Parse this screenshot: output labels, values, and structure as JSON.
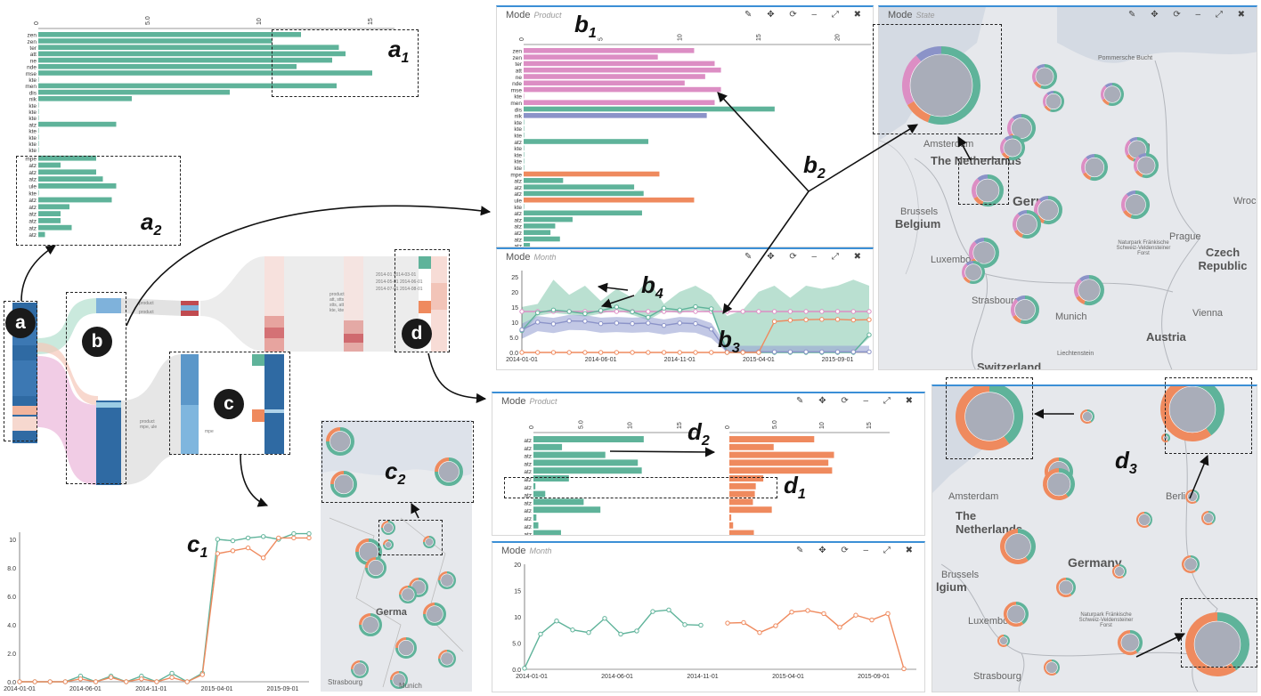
{
  "labels": {
    "a": "a",
    "b": "b",
    "c": "c",
    "d": "d",
    "a1": "a",
    "a1s": "1",
    "a2": "a",
    "a2s": "2",
    "b1": "b",
    "b1s": "1",
    "b2": "b",
    "b2s": "2",
    "b3": "b",
    "b3s": "3",
    "b4": "b",
    "b4s": "4",
    "c1": "c",
    "c1s": "1",
    "c2": "c",
    "c2s": "2",
    "d1": "d",
    "d1s": "1",
    "d2": "d",
    "d2s": "2",
    "d3": "d",
    "d3s": "3"
  },
  "panels": {
    "b1": {
      "mode": "Mode",
      "sub": "Product"
    },
    "b_state": {
      "mode": "Mode",
      "sub": "State"
    },
    "b3": {
      "mode": "Mode",
      "sub": "Month"
    },
    "d_product": {
      "mode": "Mode",
      "sub": "Product"
    },
    "d_month": {
      "mode": "Mode",
      "sub": "Month"
    }
  },
  "map_labels": {
    "germany": "Germany",
    "germ": "Germa",
    "netherlands": "The Netherlands",
    "belgium": "Belgium",
    "brussels": "Brussels",
    "luxembourg": "Luxembourg",
    "strasbourg": "Strasbourg",
    "prague": "Prague",
    "czech": "Czech Republic",
    "munich": "Munich",
    "vienna": "Vienna",
    "austria": "Austria",
    "switzerland": "Switzerland",
    "amsterdam": "Amsterdam",
    "berlin": "Berlin",
    "wroclaw": "Wrocla",
    "liechtenstein": "Liechtenstein",
    "naturpark": "Naturpark Fränkische Schweiz-Veldensteiner Forst",
    "pommersche": "Pommersche Bucht",
    "lgium": "lgium",
    "rlin": "rlin"
  },
  "sankey_text": {
    "product1": "product",
    "product2": "product",
    "product3": "product",
    "product4": "product",
    "mpe": "mpe",
    "att_stts": "att, stts",
    "stts_att": "stts, att",
    "kte_kte": "kte, kte",
    "mpe_ule": "mpe, ule",
    "dates1": "2014-01 2014-03-01",
    "dates2": "2014-05-01 2014-06-01",
    "dates3": "2014-07-01 2014-08-01"
  },
  "colors": {
    "green": "#5fb39a",
    "pink": "#dc8ec4",
    "orange": "#ef8a5e",
    "blue": "#4a87be",
    "purple": "#8b93c8",
    "ring": "#a9adb9"
  },
  "chart_data": [
    {
      "type": "bar",
      "id": "a",
      "xticks": [
        "0",
        "5.0",
        "10",
        "15"
      ],
      "xlim": [
        0,
        16
      ],
      "categories": [
        "zen",
        "zen",
        "ter",
        "att",
        "ne",
        "nde",
        "mse",
        "kte",
        "men",
        "dis",
        "nik",
        "kte",
        "kte",
        "kte",
        "atz",
        "kte",
        "kte",
        "kte",
        "kte"
      ],
      "values": [
        11.8,
        10.5,
        13.5,
        13.8,
        13.2,
        11.6,
        15.0,
        0.0,
        13.4,
        8.6,
        4.2,
        0,
        0,
        0,
        3.5,
        0,
        0,
        0,
        0
      ],
      "group2": {
        "categories": [
          "mpe",
          "atz",
          "atz",
          "atz",
          "ule",
          "kte",
          "atz",
          "atz",
          "atz",
          "atz",
          "atz",
          "atz"
        ],
        "values": [
          2.6,
          1.0,
          2.6,
          2.9,
          3.5,
          0.0,
          3.3,
          1.4,
          1.0,
          1.0,
          1.5,
          0.3
        ]
      }
    },
    {
      "type": "bar",
      "id": "b1",
      "xticks": [
        "0",
        "5",
        "10",
        "15",
        "20"
      ],
      "xlim": [
        0,
        22
      ],
      "categories": [
        "zen",
        "zen",
        "ter",
        "att",
        "ne",
        "nde",
        "mse",
        "kte",
        "men",
        "dis",
        "nik",
        "kte",
        "kte",
        "kte",
        "atz",
        "kte",
        "kte",
        "kte",
        "kte",
        "mpe",
        "atz",
        "atz",
        "atz",
        "ule",
        "kte",
        "atz",
        "atz",
        "atz",
        "atz",
        "atz",
        "atz"
      ],
      "values": [
        10.8,
        8.5,
        12.1,
        12.5,
        11.5,
        10.2,
        12.5,
        0.0,
        12.1,
        15.9,
        11.6,
        0,
        0,
        0,
        7.9,
        0,
        0,
        0,
        0,
        8.6,
        2.5,
        7.0,
        7.6,
        10.8,
        0,
        7.5,
        3.1,
        2.0,
        1.7,
        2.3,
        0.4
      ],
      "colors": [
        "pink",
        "pink",
        "pink",
        "pink",
        "pink",
        "pink",
        "pink",
        "pink",
        "pink",
        "green",
        "purple",
        "green",
        "green",
        "green",
        "green",
        "green",
        "green",
        "green",
        "green",
        "orange",
        "green",
        "green",
        "green",
        "orange",
        "green",
        "green",
        "green",
        "green",
        "green",
        "green",
        "green"
      ]
    },
    {
      "type": "line",
      "id": "b3",
      "xticks": [
        "2014-01-01",
        "2014-06-01",
        "2014-11-01",
        "2015-04-01",
        "2015-09-01"
      ],
      "yticks": [
        "0.0",
        "5.0",
        "10",
        "15",
        "20",
        "25"
      ],
      "ylim": [
        0,
        27
      ],
      "series": [
        {
          "color": "pink",
          "values": [
            13.5,
            13.5,
            13.5,
            13.5,
            13.5,
            13.5,
            13.5,
            13.5,
            13.5,
            13.5,
            13.5,
            13.5,
            13.5,
            13.5,
            13.5,
            13.5,
            13.5,
            13.5,
            13.5,
            13.5,
            13.5,
            13.5,
            13.5
          ]
        },
        {
          "color": "green",
          "values": [
            7.2,
            13.1,
            14.0,
            13.5,
            12.8,
            13.8,
            15.0,
            13.4,
            11.6,
            14.6,
            14.0,
            15.1,
            14.4,
            0,
            0,
            0,
            0,
            0,
            0,
            0,
            0,
            0,
            5.8
          ]
        },
        {
          "color": "purple",
          "values": [
            7.5,
            10.0,
            9.4,
            10.4,
            10.3,
            9.5,
            9.7,
            9.5,
            9.7,
            8.9,
            9.7,
            9.5,
            7.7,
            0.2,
            0.2,
            0.2,
            0.2,
            0.2,
            0.2,
            0.2,
            0.2,
            0.2,
            0.2
          ]
        },
        {
          "color": "orange",
          "values": [
            0,
            0,
            0,
            0,
            0,
            0,
            0,
            0,
            0,
            0,
            0,
            0,
            0,
            0,
            0,
            0,
            10.2,
            10.6,
            10.8,
            10.9,
            10.9,
            10.7,
            10.8
          ]
        }
      ],
      "band_green_upper": [
        15,
        16,
        24,
        19,
        22,
        17,
        21,
        18,
        24,
        16,
        20,
        22,
        19,
        12,
        14,
        20,
        22,
        18,
        22,
        21,
        22,
        24,
        22
      ]
    },
    {
      "type": "bar",
      "id": "d1",
      "xticks": [
        "0",
        "5.0",
        "10",
        "15"
      ],
      "xlim": [
        0,
        17
      ],
      "categories": [
        "atz",
        "atz",
        "atz",
        "atz",
        "atz",
        "atz",
        "atz",
        "atz",
        "atz",
        "atz",
        "atz",
        "atz",
        "atz"
      ],
      "green": [
        11.2,
        2.9,
        7.3,
        10.6,
        11.0,
        3.6,
        0.2,
        1.2,
        5.1,
        6.8,
        0.3,
        0.5,
        2.8
      ],
      "orange": [
        9.0,
        4.7,
        11.1,
        10.5,
        10.9,
        3.6,
        2.8,
        2.7,
        2.5,
        4.5,
        0.2,
        0.4,
        2.6
      ]
    },
    {
      "type": "line",
      "id": "d_month",
      "xticks": [
        "2014-01-01",
        "2014-06-01",
        "2014-11-01",
        "2015-04-01",
        "2015-09-01"
      ],
      "yticks": [
        "0.0",
        "5.0",
        "10",
        "15",
        "20"
      ],
      "ylim": [
        0,
        20
      ],
      "series": [
        {
          "color": "green",
          "values": [
            0.2,
            6.7,
            9.2,
            7.5,
            7.0,
            9.7,
            6.7,
            7.3,
            11.0,
            11.3,
            8.5,
            8.4
          ]
        },
        {
          "color": "orange",
          "values": [
            8.8,
            8.9,
            7.0,
            8.3,
            10.9,
            11.2,
            10.6,
            8.0,
            10.3,
            9.4,
            10.6,
            0.1
          ]
        }
      ]
    },
    {
      "type": "line",
      "id": "c1",
      "xticks": [
        "2014-01-01",
        "2014-06-01",
        "2014-11-01",
        "2015-04-01",
        "2015-09-01"
      ],
      "yticks": [
        "0.0",
        "2.0",
        "4.0",
        "6.0",
        "8.0",
        "10"
      ],
      "ylim": [
        0,
        10.5
      ],
      "series": [
        {
          "color": "green",
          "values": [
            0,
            0,
            0,
            0,
            0.4,
            0,
            0.4,
            0,
            0.4,
            0,
            0.6,
            0,
            0.6,
            10.0,
            9.9,
            10.1,
            10.2,
            10.0,
            10.4,
            10.4
          ]
        },
        {
          "color": "orange",
          "values": [
            0,
            0,
            0,
            0,
            0.2,
            0,
            0.3,
            0,
            0.2,
            0,
            0.3,
            0,
            0.5,
            9.0,
            9.2,
            9.4,
            8.7,
            10.1,
            10.1,
            10.1
          ]
        }
      ]
    }
  ]
}
